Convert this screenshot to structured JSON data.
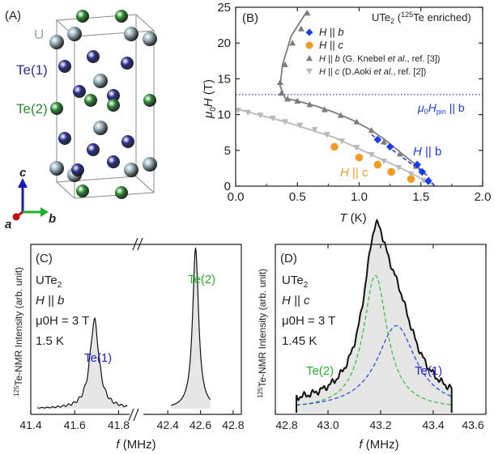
{
  "panels": {
    "a": {
      "label": "(A)",
      "legend": [
        {
          "name": "U",
          "color": "#8fa9b3"
        },
        {
          "name": "Te(1)",
          "color": "#2c2f8e"
        },
        {
          "name": "Te(2)",
          "color": "#2d8b33"
        }
      ],
      "axes": {
        "c": "c",
        "a": "a",
        "b": "b"
      }
    },
    "b": {
      "label": "(B)",
      "title": "UTe",
      "title_sub": "2",
      "title_paren_open": " (",
      "title_sup": "125",
      "title_rest": "Te enriched)",
      "legend": [
        {
          "label_pre": "H",
          "label_rel": " || ",
          "label_dir": "b",
          "note": "",
          "ref_pre": "",
          "ref_etal": "",
          "ref_post": ""
        },
        {
          "label_pre": "H",
          "label_rel": " || ",
          "label_dir": "c",
          "note": "",
          "ref_pre": "",
          "ref_etal": "",
          "ref_post": ""
        },
        {
          "label_pre": "H",
          "label_rel": " || ",
          "label_dir": "b",
          "note": "",
          "ref_pre": " (G. Knebel ",
          "ref_etal": "et al",
          "ref_post": "., ref. [3])"
        },
        {
          "label_pre": "H",
          "label_rel": " || ",
          "label_dir": "c",
          "note": "",
          "ref_pre": "  (D.Aoki ",
          "ref_etal": "et al",
          "ref_post": "., ref. [2])"
        }
      ],
      "annotations": {
        "hpin_mu": "μ",
        "hpin_sub0": "0",
        "hpin_H": "H",
        "hpin_sub": "pin",
        "hpin_rel": " || b",
        "hb_H": "H",
        "hb_rel": " || b",
        "hc_H": "H",
        "hc_rel": " || c"
      }
    },
    "c": {
      "label": "(C)",
      "info": [
        "UTe",
        "H || b",
        "μ0H = 3 T",
        "1.5 K"
      ],
      "info_sub": "2",
      "peaks": [
        "Te(1)",
        "Te(2)"
      ]
    },
    "d": {
      "label": "(D)",
      "info": [
        "UTe",
        "H || c",
        "μ0H = 3 T",
        "1.45 K"
      ],
      "info_sub": "2",
      "peaks": [
        "Te(2)",
        "Te(1)"
      ]
    }
  },
  "colors": {
    "blue": "#1a3de8",
    "orange": "#f39a25",
    "grey_dark": "#7d7d7d",
    "grey_light": "#b8b8b8",
    "te1_label": "#2323c8",
    "te2_label": "#28b028",
    "te2_fit": "#3dbf3d",
    "te1_fit": "#2d4fe0",
    "pin_line": "#3040b0",
    "fill": "#e6e6e6"
  },
  "chart_data": [
    {
      "type": "scatter",
      "panel": "B",
      "xlabel": "T (K)",
      "ylabel": "μ0H (T)",
      "xlim": [
        0,
        2.0
      ],
      "ylim": [
        0,
        25
      ],
      "xticks": [
        "0.0",
        "0.5",
        "1.0",
        "1.5",
        "2.0"
      ],
      "yticks": [
        "0",
        "5",
        "10",
        "15",
        "20",
        "25"
      ],
      "hpin": 12.8,
      "series": [
        {
          "name": "H || b",
          "marker": "diamond",
          "color": "#1a3de8",
          "x": [
            1.15,
            1.25,
            1.47,
            1.51,
            1.56
          ],
          "y": [
            6.5,
            5.5,
            3.0,
            2.0,
            0.7
          ]
        },
        {
          "name": "H || c",
          "marker": "circle",
          "color": "#f39a25",
          "x": [
            0.8,
            1.0,
            1.15,
            1.26,
            1.42
          ],
          "y": [
            5.5,
            4.0,
            3.0,
            2.0,
            1.0
          ]
        },
        {
          "name": "H || b (G. Knebel et al., ref. [3])",
          "marker": "triangle-up",
          "color": "#7d7d7d",
          "x": [
            0.58,
            0.53,
            0.46,
            0.4,
            0.36,
            0.37,
            0.42,
            0.5,
            0.6,
            0.72,
            0.85,
            0.98,
            1.1,
            1.2,
            1.33,
            1.46
          ],
          "y": [
            24.2,
            22.0,
            20.0,
            17.0,
            14.5,
            13.0,
            12.2,
            11.9,
            11.4,
            10.7,
            9.9,
            9.0,
            7.8,
            6.2,
            4.5,
            2.8
          ]
        },
        {
          "name": "H || c (D.Aoki et al., ref. [2])",
          "marker": "triangle-down",
          "color": "#b8b8b8",
          "x": [
            0.02,
            0.1,
            0.2,
            0.3,
            0.4,
            0.52,
            0.64,
            0.74,
            0.86,
            0.98,
            1.1,
            1.2,
            1.32,
            1.42,
            1.52
          ],
          "y": [
            10.6,
            10.3,
            9.9,
            9.5,
            9.0,
            8.5,
            7.9,
            7.2,
            6.3,
            5.4,
            4.4,
            3.5,
            2.6,
            1.7,
            0.8
          ]
        }
      ],
      "phase_line_b": {
        "x": [
          0.58,
          0.45,
          0.38,
          0.36,
          0.4,
          0.5,
          0.65,
          0.8,
          0.95,
          1.1,
          1.2,
          1.35,
          1.45,
          1.52
        ],
        "y": [
          24.5,
          21.0,
          17.0,
          14.0,
          12.3,
          11.9,
          11.2,
          10.3,
          9.2,
          7.8,
          6.6,
          4.5,
          3.1,
          2.0
        ]
      },
      "dash_line_b": {
        "x": [
          1.1,
          1.55,
          1.61
        ],
        "y": [
          7.2,
          1.5,
          0
        ]
      },
      "phase_line_c": {
        "x": [
          0.0,
          0.4,
          0.8,
          1.1,
          1.4,
          1.62
        ],
        "y": [
          10.8,
          9.0,
          6.8,
          4.4,
          2.0,
          0
        ]
      }
    },
    {
      "type": "line",
      "panel": "C",
      "xlabel": "f (MHz)",
      "ylabel_sup": "125",
      "ylabel": "Te-NMR Intensity (arb. unit)",
      "xticks_left": [
        "41.4",
        "41.6",
        "41.8"
      ],
      "xticks_right": [
        "42.4",
        "42.6",
        "42.8"
      ],
      "xlim_left": [
        41.4,
        41.85
      ],
      "xlim_right": [
        42.25,
        42.85
      ],
      "peak1": {
        "center": 41.69,
        "width": 0.025,
        "height": 0.55
      },
      "peak2": {
        "center": 42.57,
        "width": 0.022,
        "height": 1.0
      }
    },
    {
      "type": "line",
      "panel": "D",
      "xlabel": "f (MHz)",
      "ylabel_sup": "125",
      "ylabel": "Te-NMR Intensity (arb. unit)",
      "xticks": [
        "42.8",
        "43.0",
        "43.2",
        "43.4",
        "43.6"
      ],
      "xlim": [
        42.8,
        43.6
      ],
      "fit_te2": {
        "center": 43.18,
        "width": 0.055,
        "height": 0.72
      },
      "fit_te1": {
        "center": 43.26,
        "width": 0.09,
        "height": 0.45
      },
      "baseline": 0.035,
      "range": [
        42.88,
        43.47
      ]
    }
  ]
}
